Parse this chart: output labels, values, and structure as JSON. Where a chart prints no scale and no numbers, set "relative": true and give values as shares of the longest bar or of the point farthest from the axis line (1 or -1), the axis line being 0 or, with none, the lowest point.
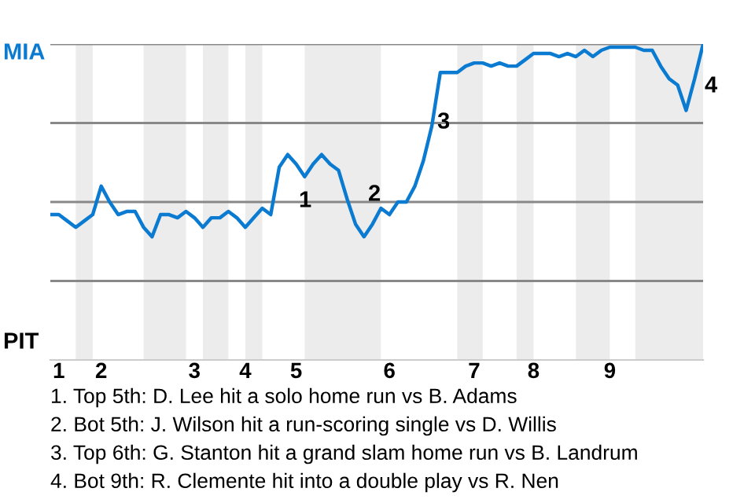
{
  "chart_data": {
    "type": "line",
    "relative": true,
    "categories": [
      null,
      "1",
      null,
      null,
      null,
      null,
      "2",
      null,
      null,
      null,
      null,
      null,
      null,
      null,
      null,
      null,
      null,
      "3",
      null,
      null,
      null,
      null,
      null,
      "4",
      null,
      null,
      null,
      null,
      null,
      "5",
      null,
      null,
      null,
      null,
      null,
      null,
      null,
      null,
      null,
      null,
      "6",
      null,
      null,
      null,
      null,
      null,
      null,
      null,
      null,
      null,
      "7",
      null,
      null,
      null,
      null,
      null,
      null,
      "8",
      null,
      null,
      null,
      null,
      null,
      null,
      null,
      null,
      "9",
      null,
      null,
      null,
      null,
      null,
      null,
      null,
      null,
      null,
      null,
      null
    ],
    "series": [
      {
        "color": "#0a7bd1",
        "values": [
          0.46,
          0.46,
          0.44,
          0.42,
          0.44,
          0.46,
          0.55,
          0.5,
          0.46,
          0.47,
          0.47,
          0.42,
          0.39,
          0.46,
          0.46,
          0.45,
          0.47,
          0.45,
          0.42,
          0.45,
          0.45,
          0.47,
          0.45,
          0.42,
          0.45,
          0.48,
          0.46,
          0.61,
          0.65,
          0.62,
          0.58,
          0.62,
          0.65,
          0.62,
          0.6,
          0.51,
          0.43,
          0.39,
          0.43,
          0.48,
          0.46,
          0.5,
          0.5,
          0.55,
          0.63,
          0.74,
          0.91,
          0.91,
          0.91,
          0.93,
          0.94,
          0.94,
          0.93,
          0.94,
          0.93,
          0.93,
          0.95,
          0.97,
          0.97,
          0.97,
          0.96,
          0.97,
          0.96,
          0.98,
          0.96,
          0.98,
          0.99,
          0.99,
          0.99,
          0.99,
          0.98,
          0.98,
          0.93,
          0.89,
          0.87,
          0.79,
          0.89,
          1
        ]
      }
    ],
    "grid": "y",
    "legend": false,
    "marker": "none",
    "line_style": "solid",
    "annotations": [
      "MIA",
      "PIT",
      "1",
      "2",
      "3",
      "4",
      "1. Top 5th: D. Lee hit a solo home run vs B. Adams",
      "2. Bot 5th: J. Wilson hit a run-scoring single vs D. Willis",
      "3. Top 6th: G. Stanton hit a grand slam home run vs B. Landrum",
      "4. Bot 9th: R. Clemente hit into a double play vs R. Nen"
    ]
  }
}
